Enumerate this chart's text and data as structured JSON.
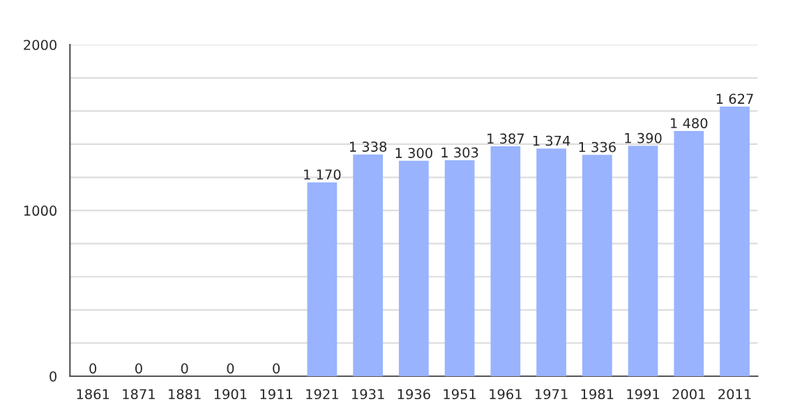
{
  "chart_data": {
    "type": "bar",
    "categories": [
      "1861",
      "1871",
      "1881",
      "1901",
      "1911",
      "1921",
      "1931",
      "1936",
      "1951",
      "1961",
      "1971",
      "1981",
      "1991",
      "2001",
      "2011"
    ],
    "values": [
      0,
      0,
      0,
      0,
      0,
      1170,
      1338,
      1300,
      1303,
      1387,
      1374,
      1336,
      1390,
      1480,
      1627
    ],
    "value_labels": [
      "0",
      "0",
      "0",
      "0",
      "0",
      "1 170",
      "1 338",
      "1 300",
      "1 303",
      "1 387",
      "1 374",
      "1 336",
      "1 390",
      "1 480",
      "1 627"
    ],
    "color": "#99b3ff",
    "ylim": [
      0,
      2000
    ],
    "yticks": [
      0,
      {
        "value": 200,
        "label": null
      },
      {
        "value": 400,
        "label": null
      },
      {
        "value": 600,
        "label": null
      },
      {
        "value": 800,
        "label": null
      },
      1000,
      {
        "value": 1200,
        "label": null
      },
      {
        "value": 1400,
        "label": null
      },
      {
        "value": 1600,
        "label": null
      },
      {
        "value": 1800,
        "label": null
      },
      2000
    ],
    "grid": "y"
  }
}
